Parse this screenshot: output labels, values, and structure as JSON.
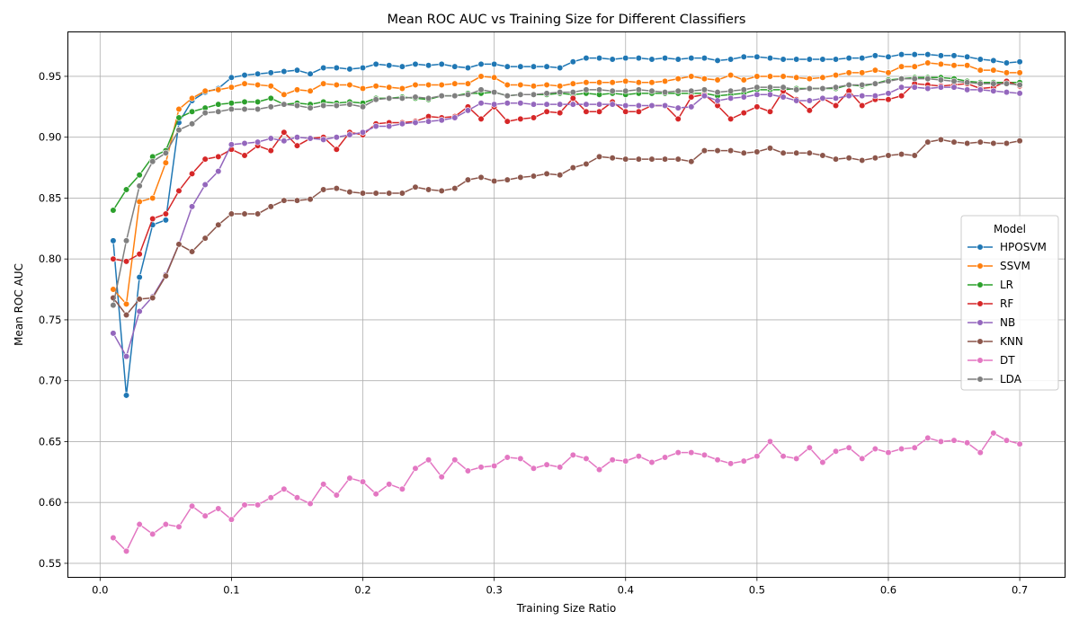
{
  "chart_data": {
    "type": "line",
    "title": "Mean ROC AUC vs Training Size for Different Classifiers",
    "xlabel": "Training Size Ratio",
    "ylabel": "Mean ROC AUC",
    "xlim": [
      -0.0245,
      0.7345
    ],
    "ylim": [
      0.5385,
      0.9865
    ],
    "xticks": [
      0.0,
      0.1,
      0.2,
      0.3,
      0.4,
      0.5,
      0.6,
      0.7
    ],
    "xtick_labels": [
      "0.0",
      "0.1",
      "0.2",
      "0.3",
      "0.4",
      "0.5",
      "0.6",
      "0.7"
    ],
    "yticks": [
      0.55,
      0.6,
      0.65,
      0.7,
      0.75,
      0.8,
      0.85,
      0.9,
      0.95
    ],
    "ytick_labels": [
      "0.55",
      "0.60",
      "0.65",
      "0.70",
      "0.75",
      "0.80",
      "0.85",
      "0.90",
      "0.95"
    ],
    "grid": true,
    "legend": {
      "title": "Model",
      "position": "right"
    },
    "x_start": 0.01,
    "x_step": 0.01,
    "series": [
      {
        "name": "HPOSVM",
        "color": "#1f77b4",
        "values": [
          0.815,
          0.688,
          0.785,
          0.828,
          0.832,
          0.912,
          0.93,
          0.937,
          0.94,
          0.949,
          0.951,
          0.952,
          0.953,
          0.954,
          0.955,
          0.952,
          0.957,
          0.957,
          0.956,
          0.957,
          0.96,
          0.959,
          0.958,
          0.96,
          0.959,
          0.96,
          0.958,
          0.957,
          0.96,
          0.96,
          0.958,
          0.958,
          0.958,
          0.958,
          0.957,
          0.962,
          0.965,
          0.965,
          0.964,
          0.965,
          0.965,
          0.964,
          0.965,
          0.964,
          0.965,
          0.965,
          0.963,
          0.964,
          0.966,
          0.966,
          0.965,
          0.964,
          0.964,
          0.964,
          0.964,
          0.964,
          0.965,
          0.965,
          0.967,
          0.966,
          0.968,
          0.968,
          0.968,
          0.967,
          0.967,
          0.966,
          0.964,
          0.963,
          0.961,
          0.962
        ]
      },
      {
        "name": "SSVM",
        "color": "#ff7f0e",
        "values": [
          0.775,
          0.763,
          0.847,
          0.85,
          0.879,
          0.923,
          0.932,
          0.938,
          0.939,
          0.941,
          0.944,
          0.943,
          0.942,
          0.935,
          0.939,
          0.938,
          0.944,
          0.943,
          0.943,
          0.94,
          0.942,
          0.941,
          0.94,
          0.943,
          0.943,
          0.943,
          0.944,
          0.944,
          0.95,
          0.949,
          0.943,
          0.943,
          0.942,
          0.943,
          0.942,
          0.944,
          0.945,
          0.945,
          0.945,
          0.946,
          0.945,
          0.945,
          0.946,
          0.948,
          0.95,
          0.948,
          0.947,
          0.951,
          0.947,
          0.95,
          0.95,
          0.95,
          0.949,
          0.948,
          0.949,
          0.951,
          0.953,
          0.953,
          0.955,
          0.953,
          0.958,
          0.958,
          0.961,
          0.96,
          0.959,
          0.959,
          0.955,
          0.955,
          0.953,
          0.953
        ]
      },
      {
        "name": "LR",
        "color": "#2ca02c",
        "values": [
          0.84,
          0.857,
          0.869,
          0.884,
          0.889,
          0.916,
          0.921,
          0.924,
          0.927,
          0.928,
          0.929,
          0.929,
          0.932,
          0.927,
          0.928,
          0.927,
          0.929,
          0.928,
          0.929,
          0.928,
          0.932,
          0.932,
          0.933,
          0.932,
          0.931,
          0.934,
          0.934,
          0.936,
          0.936,
          0.937,
          0.934,
          0.935,
          0.935,
          0.935,
          0.936,
          0.935,
          0.936,
          0.935,
          0.936,
          0.935,
          0.936,
          0.936,
          0.936,
          0.936,
          0.936,
          0.936,
          0.934,
          0.935,
          0.936,
          0.939,
          0.939,
          0.939,
          0.94,
          0.94,
          0.94,
          0.94,
          0.943,
          0.942,
          0.944,
          0.947,
          0.948,
          0.949,
          0.949,
          0.949,
          0.948,
          0.946,
          0.945,
          0.945,
          0.945,
          0.945
        ]
      },
      {
        "name": "RF",
        "color": "#d62728",
        "values": [
          0.8,
          0.798,
          0.804,
          0.833,
          0.837,
          0.856,
          0.87,
          0.882,
          0.884,
          0.89,
          0.885,
          0.893,
          0.889,
          0.904,
          0.893,
          0.899,
          0.9,
          0.89,
          0.904,
          0.902,
          0.911,
          0.912,
          0.912,
          0.913,
          0.917,
          0.916,
          0.917,
          0.925,
          0.915,
          0.925,
          0.913,
          0.915,
          0.916,
          0.921,
          0.92,
          0.932,
          0.921,
          0.921,
          0.929,
          0.921,
          0.921,
          0.926,
          0.926,
          0.915,
          0.933,
          0.935,
          0.926,
          0.915,
          0.92,
          0.925,
          0.921,
          0.938,
          0.931,
          0.922,
          0.932,
          0.926,
          0.938,
          0.926,
          0.931,
          0.931,
          0.934,
          0.944,
          0.943,
          0.942,
          0.943,
          0.944,
          0.94,
          0.941,
          0.946,
          0.942
        ]
      },
      {
        "name": "NB",
        "color": "#9467bd",
        "values": [
          0.739,
          0.72,
          0.757,
          0.769,
          0.787,
          0.812,
          0.843,
          0.861,
          0.872,
          0.894,
          0.895,
          0.896,
          0.899,
          0.897,
          0.9,
          0.899,
          0.898,
          0.9,
          0.902,
          0.904,
          0.909,
          0.909,
          0.911,
          0.912,
          0.913,
          0.914,
          0.916,
          0.922,
          0.928,
          0.927,
          0.928,
          0.928,
          0.927,
          0.927,
          0.927,
          0.927,
          0.927,
          0.927,
          0.927,
          0.926,
          0.926,
          0.926,
          0.926,
          0.924,
          0.925,
          0.934,
          0.93,
          0.932,
          0.933,
          0.935,
          0.935,
          0.933,
          0.93,
          0.93,
          0.932,
          0.932,
          0.934,
          0.934,
          0.934,
          0.936,
          0.941,
          0.941,
          0.94,
          0.941,
          0.941,
          0.939,
          0.939,
          0.938,
          0.937,
          0.936
        ]
      },
      {
        "name": "KNN",
        "color": "#8c564b",
        "values": [
          0.768,
          0.754,
          0.767,
          0.768,
          0.786,
          0.812,
          0.806,
          0.817,
          0.828,
          0.837,
          0.837,
          0.837,
          0.843,
          0.848,
          0.848,
          0.849,
          0.857,
          0.858,
          0.855,
          0.854,
          0.854,
          0.854,
          0.854,
          0.859,
          0.857,
          0.856,
          0.858,
          0.865,
          0.867,
          0.864,
          0.865,
          0.867,
          0.868,
          0.87,
          0.869,
          0.875,
          0.878,
          0.884,
          0.883,
          0.882,
          0.882,
          0.882,
          0.882,
          0.882,
          0.88,
          0.889,
          0.889,
          0.889,
          0.887,
          0.888,
          0.891,
          0.887,
          0.887,
          0.887,
          0.885,
          0.882,
          0.883,
          0.881,
          0.883,
          0.885,
          0.886,
          0.885,
          0.896,
          0.898,
          0.896,
          0.895,
          0.896,
          0.895,
          0.895,
          0.897
        ]
      },
      {
        "name": "DT",
        "color": "#e377c2",
        "values": [
          0.571,
          0.56,
          0.582,
          0.574,
          0.582,
          0.58,
          0.597,
          0.589,
          0.595,
          0.586,
          0.598,
          0.598,
          0.604,
          0.611,
          0.604,
          0.599,
          0.615,
          0.606,
          0.62,
          0.617,
          0.607,
          0.615,
          0.611,
          0.628,
          0.635,
          0.621,
          0.635,
          0.626,
          0.629,
          0.63,
          0.637,
          0.636,
          0.628,
          0.631,
          0.629,
          0.639,
          0.636,
          0.627,
          0.635,
          0.634,
          0.638,
          0.633,
          0.637,
          0.641,
          0.641,
          0.639,
          0.635,
          0.632,
          0.634,
          0.638,
          0.65,
          0.638,
          0.636,
          0.645,
          0.633,
          0.642,
          0.645,
          0.636,
          0.644,
          0.641,
          0.644,
          0.645,
          0.653,
          0.65,
          0.651,
          0.649,
          0.641,
          0.657,
          0.651,
          0.648
        ]
      },
      {
        "name": "LDA",
        "color": "#7f7f7f",
        "values": [
          0.762,
          0.815,
          0.86,
          0.88,
          0.887,
          0.906,
          0.911,
          0.92,
          0.921,
          0.923,
          0.923,
          0.923,
          0.925,
          0.927,
          0.926,
          0.924,
          0.926,
          0.926,
          0.927,
          0.925,
          0.931,
          0.932,
          0.932,
          0.933,
          0.932,
          0.934,
          0.934,
          0.935,
          0.939,
          0.937,
          0.934,
          0.935,
          0.935,
          0.936,
          0.937,
          0.937,
          0.939,
          0.939,
          0.938,
          0.938,
          0.939,
          0.938,
          0.937,
          0.938,
          0.938,
          0.939,
          0.937,
          0.938,
          0.939,
          0.941,
          0.941,
          0.941,
          0.939,
          0.94,
          0.94,
          0.941,
          0.943,
          0.943,
          0.944,
          0.946,
          0.948,
          0.948,
          0.948,
          0.947,
          0.946,
          0.945,
          0.944,
          0.944,
          0.944,
          0.943
        ]
      }
    ]
  }
}
